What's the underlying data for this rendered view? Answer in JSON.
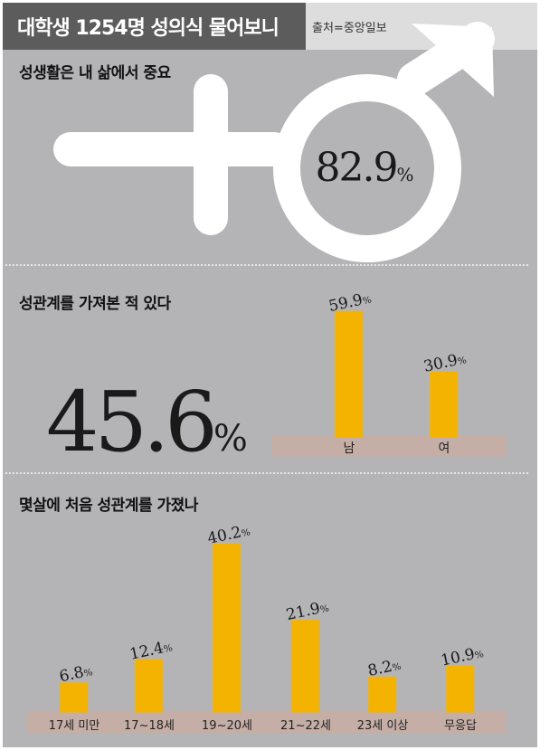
{
  "header": {
    "title": "대학생 1254명 성의식 물어보니",
    "source": "출처=중앙일보"
  },
  "colors": {
    "bar": "#f5b301",
    "base": "#c5aea6",
    "header_dark": "#5c5c5c",
    "panel": "#b4b4b6",
    "symbol": "#ffffff"
  },
  "symbol": {
    "name": "male-female-symbol-icon"
  },
  "chart_data": [
    {
      "type": "stat",
      "title": "성생활은 내 삶에서 중요",
      "value": 82.9,
      "value_label": "82.9",
      "unit": "%"
    },
    {
      "type": "bar",
      "title": "성관계를 가져본 적 있다",
      "overall": 45.6,
      "overall_label": "45.6",
      "unit": "%",
      "categories": [
        "남",
        "여"
      ],
      "values": [
        59.9,
        30.9
      ],
      "value_labels": [
        "59.9",
        "30.9"
      ]
    },
    {
      "type": "bar",
      "title": "몇살에 처음 성관계를 가졌나",
      "unit": "%",
      "categories": [
        "17세 미만",
        "17~18세",
        "19~20세",
        "21~22세",
        "23세 이상",
        "무응답"
      ],
      "values": [
        6.8,
        12.4,
        40.2,
        21.9,
        8.2,
        10.9
      ],
      "value_labels": [
        "6.8",
        "12.4",
        "40.2",
        "21.9",
        "8.2",
        "10.9"
      ]
    }
  ]
}
